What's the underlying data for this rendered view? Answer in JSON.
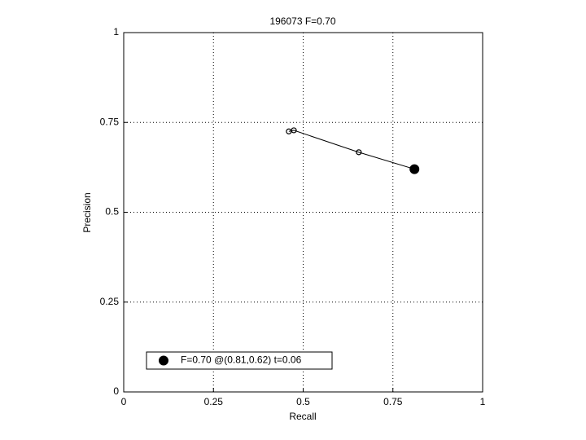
{
  "chart_data": {
    "type": "line",
    "title": "196073 F=0.70",
    "x_label": "Recall",
    "y_label": "Precision",
    "xlim": [
      0,
      1
    ],
    "ylim": [
      0,
      1
    ],
    "xticks": [
      0,
      0.25,
      0.5,
      0.75,
      1
    ],
    "yticks": [
      0,
      0.25,
      0.5,
      0.75,
      1
    ],
    "grid": true,
    "legend": "lower left",
    "series": [
      {
        "color": "#000000",
        "marker": "open",
        "x": [
          0.46,
          0.474,
          0.655,
          0.81
        ],
        "values": [
          0.725,
          0.728,
          0.667,
          0.62
        ]
      },
      {
        "name": "F=0.70 @(0.81,0.62) t=0.06",
        "color": "#000000",
        "marker": "filled",
        "x": [
          0.81
        ],
        "values": [
          0.62
        ]
      }
    ]
  }
}
